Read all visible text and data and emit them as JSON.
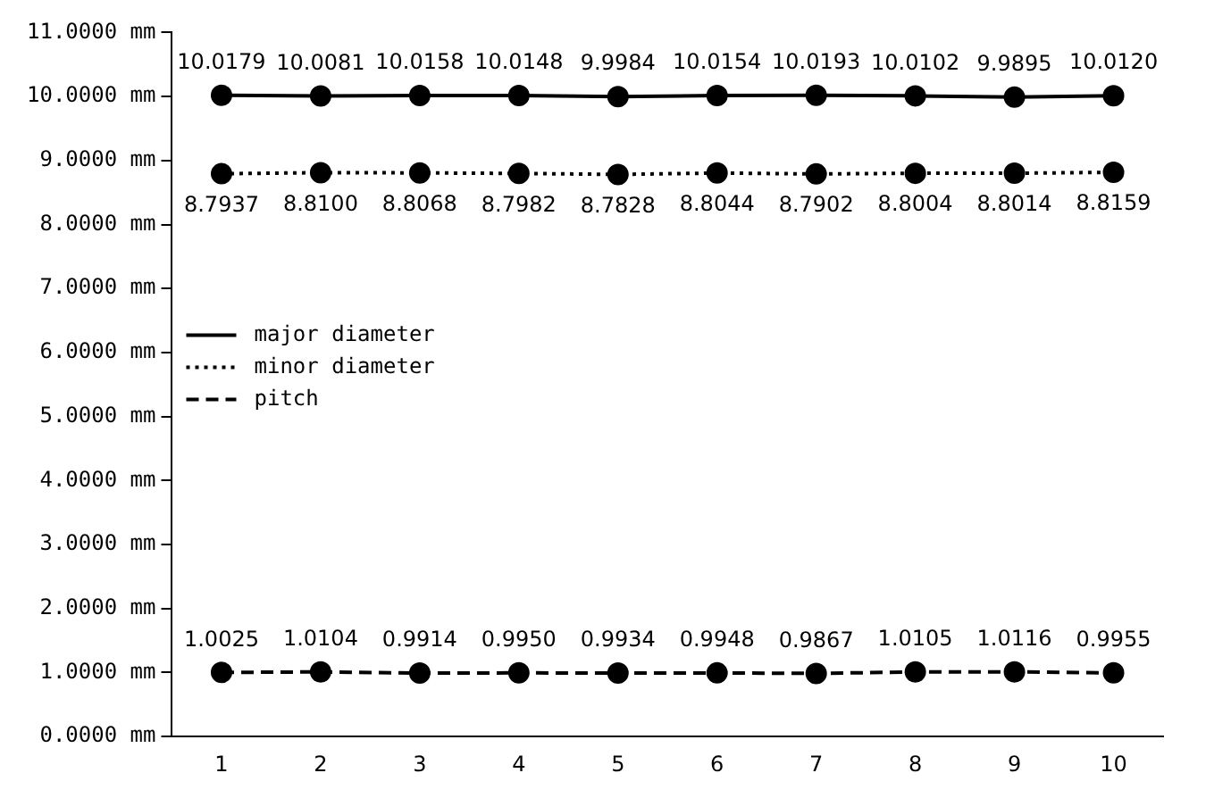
{
  "chart_data": {
    "type": "line",
    "categories": [
      "1",
      "2",
      "3",
      "4",
      "5",
      "6",
      "7",
      "8",
      "9",
      "10"
    ],
    "series": [
      {
        "name": "major diameter",
        "color": "#000000",
        "line_style": "solid",
        "values": [
          10.0179,
          10.0081,
          10.0158,
          10.0148,
          9.9984,
          10.0154,
          10.0193,
          10.0102,
          9.9895,
          10.012
        ],
        "value_labels": [
          "10.0179",
          "10.0081",
          "10.0158",
          "10.0148",
          "9.9984",
          "10.0154",
          "10.0193",
          "10.0102",
          "9.9895",
          "10.0120"
        ]
      },
      {
        "name": "minor diameter",
        "color": "#000000",
        "line_style": "dotted",
        "values": [
          8.7937,
          8.81,
          8.8068,
          8.7982,
          8.7828,
          8.8044,
          8.7902,
          8.8004,
          8.8014,
          8.8159
        ],
        "value_labels": [
          "8.7937",
          "8.8100",
          "8.8068",
          "8.7982",
          "8.7828",
          "8.8044",
          "8.7902",
          "8.8004",
          "8.8014",
          "8.8159"
        ]
      },
      {
        "name": "pitch",
        "color": "#000000",
        "line_style": "dashed",
        "values": [
          1.0025,
          1.0104,
          0.9914,
          0.995,
          0.9934,
          0.9948,
          0.9867,
          1.0105,
          1.0116,
          0.9955
        ],
        "value_labels": [
          "1.0025",
          "1.0104",
          "0.9914",
          "0.9950",
          "0.9934",
          "0.9948",
          "0.9867",
          "1.0105",
          "1.0116",
          "0.9955"
        ]
      }
    ],
    "ylim": [
      0,
      11
    ],
    "yticks": [
      {
        "value": 0,
        "label": "0.0000 mm"
      },
      {
        "value": 1,
        "label": "1.0000 mm"
      },
      {
        "value": 2,
        "label": "2.0000 mm"
      },
      {
        "value": 3,
        "label": "3.0000 mm"
      },
      {
        "value": 4,
        "label": "4.0000 mm"
      },
      {
        "value": 5,
        "label": "5.0000 mm"
      },
      {
        "value": 6,
        "label": "6.0000 mm"
      },
      {
        "value": 7,
        "label": "7.0000 mm"
      },
      {
        "value": 8,
        "label": "8.0000 mm"
      },
      {
        "value": 9,
        "label": "9.0000 mm"
      },
      {
        "value": 10,
        "label": "10.0000 mm"
      },
      {
        "value": 11,
        "label": "11.0000 mm"
      }
    ],
    "grid": false,
    "legend": "left",
    "marker": "circle"
  }
}
